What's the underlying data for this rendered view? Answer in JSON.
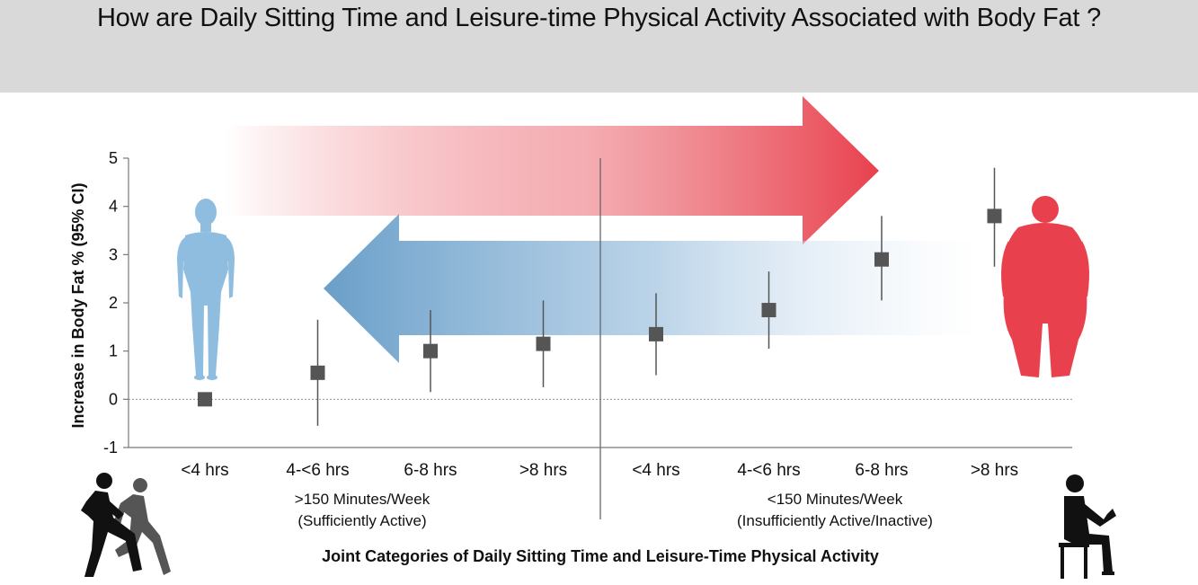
{
  "header": {
    "title": "How are Daily Sitting Time and Leisure-time Physical Activity Associated with Body Fat ?"
  },
  "colors": {
    "banner": "#d9d9d9",
    "red_arrow": "#e8414d",
    "blue_arrow": "#6a9fc9",
    "lean_body": "#8fbde0",
    "obese_body": "#e8414d",
    "marker": "#555555",
    "whisker": "#555555"
  },
  "icons": {
    "left_figure": "lean-human-body-icon",
    "right_figure": "obese-human-body-icon",
    "bottom_left": "runners-icon",
    "bottom_right": "seated-person-reading-icon"
  },
  "chart_data": {
    "type": "scatter",
    "title": "",
    "ylabel": "Increase in Body Fat % (95% CI)",
    "xlabel": "Joint Categories of Daily Sitting Time and Leisure-Time Physical Activity",
    "ylim": [
      -1,
      5
    ],
    "yticks": [
      "-1",
      "0",
      "1",
      "2",
      "3",
      "4",
      "5"
    ],
    "reference_line": 0,
    "categories": [
      "<4 hrs",
      "4-<6 hrs",
      "6-8 hrs",
      ">8 hrs",
      "<4 hrs",
      "4-<6 hrs",
      "6-8 hrs",
      ">8 hrs"
    ],
    "groups": [
      {
        "line1": ">150 Minutes/Week",
        "line2": "(Sufficiently Active)"
      },
      {
        "line1": "<150 Minutes/Week",
        "line2": "(Insufficiently Active/Inactive)"
      }
    ],
    "series": [
      {
        "values": [
          0.0,
          0.55,
          1.0,
          1.15,
          1.35,
          1.85,
          2.9,
          3.8
        ],
        "ci_low": [
          0.0,
          -0.55,
          0.15,
          0.25,
          0.5,
          1.05,
          2.05,
          2.75
        ],
        "ci_high": [
          0.0,
          1.65,
          1.85,
          2.05,
          2.2,
          2.65,
          3.8,
          4.8
        ]
      }
    ]
  }
}
